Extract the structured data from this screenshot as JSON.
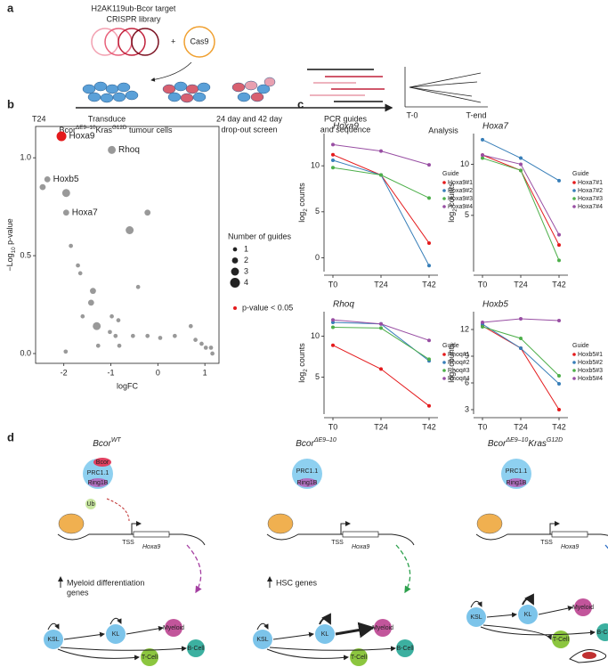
{
  "panel_a": {
    "label": "a",
    "library": [
      "H2AK119ub-Bcor target",
      "CRISPR library"
    ],
    "cas9": "Cas9",
    "step1": [
      "Transduce"
    ],
    "genotype": [
      {
        "text": "Bcor"
      },
      {
        "text": "ΔE9–10",
        "sup": true
      },
      {
        "text": "Kras"
      },
      {
        "text": "G12D",
        "sup": true
      },
      {
        "text": " tumour cells"
      }
    ],
    "step2": [
      "24 day and 42 day",
      "drop-out screen"
    ],
    "step3": [
      "PCR guides",
      "and sequence"
    ],
    "analysis": {
      "start": "T-0",
      "end": "T-end",
      "label": "Analysis"
    }
  },
  "panel_b": {
    "label": "b"
  },
  "panel_c": {
    "label": "c"
  },
  "chart_data": [
    {
      "type": "scatter",
      "title": "T24",
      "x_label": "logFC",
      "y_label": [
        {
          "text": "−Log"
        },
        {
          "text": "10",
          "sub": true
        },
        {
          "text": " p-value"
        }
      ],
      "xlim": [
        -2.6,
        1.3
      ],
      "ylim": [
        -0.05,
        1.16
      ],
      "xticks": [
        -2,
        -1,
        0,
        1
      ],
      "yticks": [
        {
          "value": 0,
          "label": "0.0"
        },
        {
          "value": 0.5,
          "label": "0.5"
        },
        {
          "value": 1,
          "label": "1.0"
        }
      ],
      "series": [
        {
          "name": "p-value < 0.05",
          "color": "#e41a1c",
          "x": [
            -2.05
          ],
          "y": [
            1.11
          ],
          "sizes": [
            4
          ],
          "point_labels": [
            "Hoxa9"
          ]
        },
        {
          "color": "#999999",
          "x": [
            -0.98,
            -2.35,
            -2.45,
            -1.95,
            -1.95,
            -0.22,
            -0.6,
            -1.85,
            -1.7,
            -1.65,
            -1.38,
            -1.42,
            -1.3,
            -0.42,
            -1.6,
            -0.98,
            -0.84,
            -1.02,
            -0.9,
            -0.53,
            -0.22,
            0.05,
            0.36,
            0.7,
            0.8,
            0.93,
            1.02,
            1.13,
            1.16,
            -1.96,
            -0.82,
            -1.27
          ],
          "y": [
            1.04,
            0.89,
            0.85,
            0.82,
            0.72,
            0.72,
            0.63,
            0.55,
            0.45,
            0.41,
            0.32,
            0.26,
            0.14,
            0.34,
            0.19,
            0.19,
            0.17,
            0.11,
            0.09,
            0.09,
            0.09,
            0.08,
            0.09,
            0.14,
            0.07,
            0.05,
            0.03,
            0.03,
            0.0,
            0.01,
            0.04,
            0.04
          ],
          "sizes": [
            3,
            2,
            2,
            3,
            2,
            2,
            3,
            1,
            1,
            1,
            2,
            2,
            3,
            1,
            1,
            1,
            1,
            1,
            1,
            1,
            1,
            1,
            1,
            1,
            1,
            1,
            1,
            1,
            1,
            1,
            1,
            1
          ],
          "point_labels": [
            "Rhoq",
            "Hoxb5",
            null,
            null,
            "Hoxa7",
            null,
            null,
            null,
            null,
            null,
            null,
            null,
            null,
            null,
            null,
            null,
            null,
            null,
            null,
            null,
            null,
            null,
            null,
            null,
            null,
            null,
            null,
            null,
            null,
            null,
            null,
            null
          ]
        }
      ],
      "size_legend": {
        "title": "Number of guides",
        "values": [
          1,
          2,
          3,
          4
        ]
      }
    },
    {
      "type": "line",
      "title": "Hoxa9",
      "categories": [
        "T0",
        "T24",
        "T42"
      ],
      "y_label": [
        {
          "text": "log"
        },
        {
          "text": "2",
          "sub": true
        },
        {
          "text": " counts"
        }
      ],
      "ylim": [
        -1.5,
        13.5
      ],
      "yticks": [
        0,
        5,
        10
      ],
      "legend_title": "Guide",
      "series": [
        {
          "name": "Hoxa9#1",
          "color": "#e41a1c",
          "values": [
            11.2,
            9.0,
            1.6
          ]
        },
        {
          "name": "Hoxa9#2",
          "color": "#377eb8",
          "values": [
            10.6,
            9.0,
            -0.85
          ]
        },
        {
          "name": "Hoxa9#3",
          "color": "#4daf4a",
          "values": [
            9.8,
            9.0,
            6.5
          ]
        },
        {
          "name": "Hoxa9#4",
          "color": "#984ea3",
          "values": [
            12.3,
            11.6,
            10.1
          ]
        }
      ]
    },
    {
      "type": "line",
      "title": "Hoxa7",
      "categories": [
        "T0",
        "T24",
        "T42"
      ],
      "y_label": [
        {
          "text": "log"
        },
        {
          "text": "2",
          "sub": true
        },
        {
          "text": " counts"
        }
      ],
      "ylim": [
        -0.5,
        13
      ],
      "yticks": [
        5,
        10
      ],
      "legend_title": "Guide",
      "series": [
        {
          "name": "Hoxa7#1",
          "color": "#e41a1c",
          "values": [
            10.9,
            9.4,
            2.1
          ]
        },
        {
          "name": "Hoxa7#2",
          "color": "#377eb8",
          "values": [
            12.4,
            10.6,
            8.4
          ]
        },
        {
          "name": "Hoxa7#3",
          "color": "#4daf4a",
          "values": [
            10.6,
            9.4,
            0.6
          ]
        },
        {
          "name": "Hoxa7#4",
          "color": "#984ea3",
          "values": [
            10.9,
            10.0,
            3.1
          ]
        }
      ]
    },
    {
      "type": "line",
      "title": "Rhoq",
      "categories": [
        "T0",
        "T24",
        "T42"
      ],
      "y_label": [
        {
          "text": "log"
        },
        {
          "text": "2",
          "sub": true
        },
        {
          "text": " counts"
        }
      ],
      "ylim": [
        0.5,
        13
      ],
      "yticks": [
        5,
        10
      ],
      "legend_title": "Guide",
      "series": [
        {
          "name": "Rhoq#1",
          "color": "#e41a1c",
          "values": [
            8.9,
            6.0,
            1.5
          ]
        },
        {
          "name": "Rhoq#2",
          "color": "#377eb8",
          "values": [
            11.7,
            11.5,
            7.0
          ]
        },
        {
          "name": "Rhoq#3",
          "color": "#4daf4a",
          "values": [
            11.1,
            11.0,
            7.2
          ]
        },
        {
          "name": "Rhoq#4",
          "color": "#984ea3",
          "values": [
            12.0,
            11.5,
            9.5
          ]
        }
      ]
    },
    {
      "type": "line",
      "title": "Hoxb5",
      "categories": [
        "T0",
        "T24",
        "T42"
      ],
      "y_label": [
        {
          "text": "log"
        },
        {
          "text": "2",
          "sub": true
        },
        {
          "text": " counts"
        }
      ],
      "ylim": [
        2.5,
        14
      ],
      "yticks": [
        3,
        6,
        9,
        12
      ],
      "legend_title": "Guide",
      "series": [
        {
          "name": "Hoxb5#1",
          "color": "#e41a1c",
          "values": [
            12.4,
            9.9,
            3.0
          ]
        },
        {
          "name": "Hoxb5#2",
          "color": "#377eb8",
          "values": [
            12.6,
            9.9,
            5.9
          ]
        },
        {
          "name": "Hoxb5#3",
          "color": "#4daf4a",
          "values": [
            12.3,
            11.0,
            6.8
          ]
        },
        {
          "name": "Hoxb5#4",
          "color": "#984ea3",
          "values": [
            12.8,
            13.2,
            13.0
          ]
        }
      ]
    }
  ],
  "panel_d": {
    "label": "d",
    "columns": [
      {
        "title": [
          {
            "text": "Bcor"
          },
          {
            "text": "WT",
            "sup": true
          }
        ],
        "complex": [
          "Bcor",
          "PRC1.1",
          "Ring1B"
        ],
        "ub": "Ub",
        "tss": "TSS",
        "gene": "Hoxa9",
        "genes": [
          "Myeloid differentiation",
          "genes"
        ],
        "cells": [
          "KSL",
          "KL",
          "Myeloid",
          "T-Cell",
          "B-Cell"
        ]
      },
      {
        "title": [
          {
            "text": "Bcor"
          },
          {
            "text": "ΔE9–10",
            "sup": true
          }
        ],
        "complex": [
          "PRC1.1",
          "Ring1B"
        ],
        "tss": "TSS",
        "gene": "Hoxa9",
        "genes": [
          "HSC genes"
        ],
        "cells": [
          "KSL",
          "KL",
          "Myeloid",
          "T-Cell",
          "B-Cell"
        ]
      },
      {
        "title": [
          {
            "text": "Bcor"
          },
          {
            "text": "ΔE9–10",
            "sup": true
          },
          {
            "text": "Kras"
          },
          {
            "text": "G12D",
            "sup": true
          }
        ],
        "complex": [
          "PRC1.1",
          "Ring1B"
        ],
        "tss": "TSS",
        "gene": "Hoxa9",
        "cells": [
          "KSL",
          "KL",
          "Myeloid",
          "B-Cell",
          "T-Cell"
        ]
      }
    ]
  }
}
